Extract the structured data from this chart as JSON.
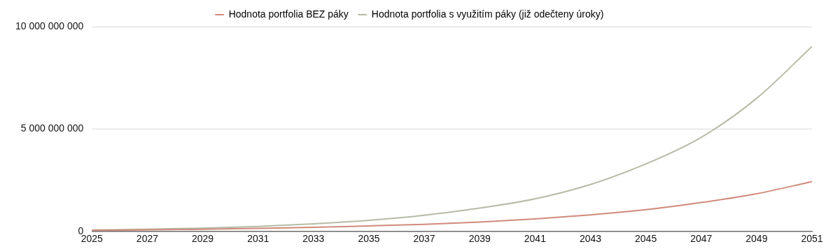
{
  "chart_data": {
    "type": "line",
    "x": [
      2025,
      2027,
      2029,
      2031,
      2033,
      2035,
      2037,
      2039,
      2041,
      2043,
      2045,
      2047,
      2049,
      2051
    ],
    "series": [
      {
        "name": "Hodnota portfolia BEZ páky",
        "color": "#d08a7a",
        "values": [
          70000000,
          90000000,
          120000000,
          160000000,
          210000000,
          280000000,
          360000000,
          470000000,
          620000000,
          820000000,
          1070000000,
          1420000000,
          1850000000,
          2440000000
        ]
      },
      {
        "name": "Hodnota portfolia s využitím páky (již odečteny úroky)",
        "color": "#b5bca6",
        "values": [
          80000000,
          120000000,
          170000000,
          250000000,
          380000000,
          550000000,
          800000000,
          1150000000,
          1600000000,
          2300000000,
          3300000000,
          4600000000,
          6500000000,
          9030000000
        ]
      }
    ],
    "xlim": [
      2025,
      2051
    ],
    "xticks": [
      2025,
      2027,
      2029,
      2031,
      2033,
      2035,
      2037,
      2039,
      2041,
      2043,
      2045,
      2047,
      2049,
      2051
    ],
    "ylim": [
      0,
      10000000000
    ],
    "yticks": [
      {
        "value": 0,
        "label": "0"
      },
      {
        "value": 5000000000,
        "label": "5 000 000 000"
      },
      {
        "value": 10000000000,
        "label": "10 000 000 000"
      }
    ],
    "grid": "y",
    "legend": "top",
    "marker": "none",
    "line_style": "solid"
  }
}
